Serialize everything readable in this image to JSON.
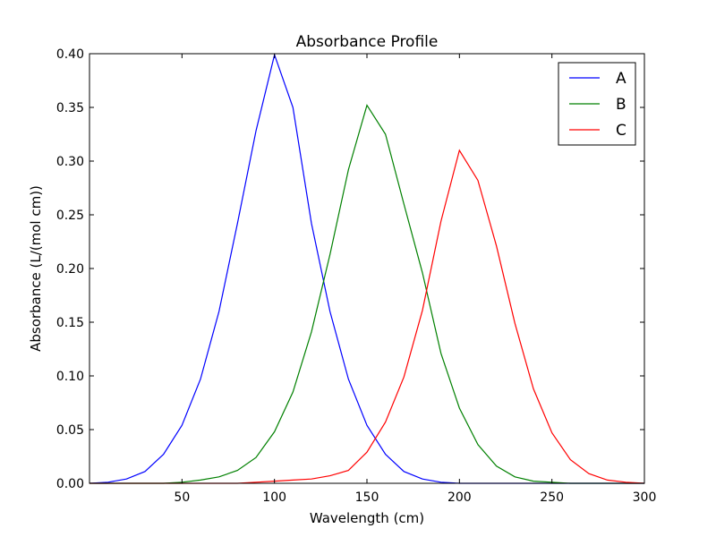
{
  "chart_data": {
    "type": "line",
    "title": "Absorbance  Profile",
    "xlabel": "Wavelength (cm)",
    "ylabel": "Absorbance (L/(mol cm))",
    "xlim": [
      0,
      300
    ],
    "ylim": [
      0.0,
      0.4
    ],
    "grid": false,
    "legend_position": "top-right",
    "x_ticks": [
      50,
      100,
      150,
      200,
      250,
      300
    ],
    "y_ticks": [
      0.0,
      0.05,
      0.1,
      0.15,
      0.2,
      0.25,
      0.3,
      0.35,
      0.4
    ],
    "x_tick_labels": [
      "50",
      "100",
      "150",
      "200",
      "250",
      "300"
    ],
    "y_tick_labels": [
      "0.00",
      "0.05",
      "0.10",
      "0.15",
      "0.20",
      "0.25",
      "0.30",
      "0.35",
      "0.40"
    ],
    "x": [
      0,
      10,
      20,
      30,
      40,
      50,
      60,
      70,
      80,
      90,
      100,
      110,
      120,
      130,
      140,
      150,
      160,
      170,
      180,
      190,
      200,
      210,
      220,
      230,
      240,
      250,
      260,
      270,
      280,
      290,
      300
    ],
    "series": [
      {
        "name": "A",
        "color": "#0000ff",
        "values": [
          0.0,
          0.001,
          0.004,
          0.011,
          0.027,
          0.054,
          0.097,
          0.16,
          0.242,
          0.328,
          0.399,
          0.35,
          0.242,
          0.16,
          0.097,
          0.054,
          0.027,
          0.011,
          0.004,
          0.001,
          0.0,
          0.0,
          0.0,
          0.0,
          0.0,
          0.0,
          0.0,
          0.0,
          0.0,
          0.0,
          0.0
        ]
      },
      {
        "name": "B",
        "color": "#008000",
        "values": [
          0.0,
          0.0,
          0.0,
          0.0,
          0.0,
          0.001,
          0.003,
          0.006,
          0.012,
          0.024,
          0.048,
          0.085,
          0.141,
          0.213,
          0.292,
          0.352,
          0.325,
          0.26,
          0.196,
          0.121,
          0.07,
          0.036,
          0.016,
          0.006,
          0.002,
          0.001,
          0.0,
          0.0,
          0.0,
          0.0,
          0.0
        ]
      },
      {
        "name": "C",
        "color": "#ff0000",
        "values": [
          0.0,
          0.0,
          0.0,
          0.0,
          0.0,
          0.0,
          0.0,
          0.0,
          0.0,
          0.001,
          0.002,
          0.003,
          0.004,
          0.007,
          0.012,
          0.029,
          0.057,
          0.099,
          0.161,
          0.244,
          0.31,
          0.282,
          0.221,
          0.149,
          0.088,
          0.047,
          0.022,
          0.009,
          0.003,
          0.001,
          0.0
        ]
      }
    ]
  }
}
